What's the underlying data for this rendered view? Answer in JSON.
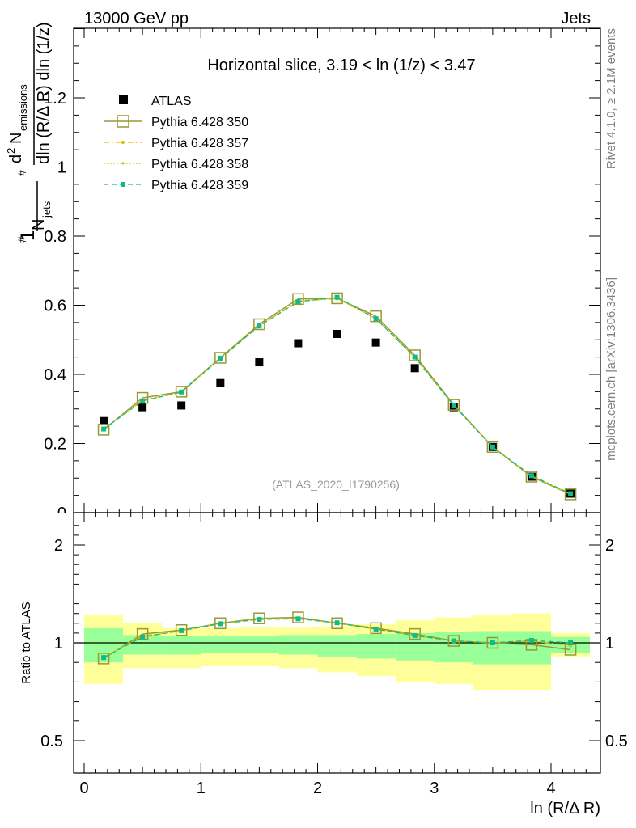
{
  "header": {
    "left": "13000 GeV pp",
    "right": "Jets"
  },
  "side_labels": {
    "rivet": "Rivet 4.1.0, ≥ 2.1M events",
    "mcplots": "mcplots.cern.ch [arXiv:1306.3436]"
  },
  "analysis_label": "(ATLAS_2020_I1790256)",
  "colors": {
    "data": "#000000",
    "p350": "#999933",
    "p357": "#e5b800",
    "p358": "#cccc00",
    "p359": "#11bb88",
    "band_outer": "#ffff99",
    "band_inner": "#99ff99"
  },
  "chart_data": [
    {
      "type": "scatter",
      "title": "Horizontal slice, 3.19 < ln (1/z) < 3.47",
      "ylabel": "(1/N_jets) d²N_emissions / dln(R/ΔR) dln(1/z)",
      "ylabel_parts": {
        "one": "1",
        "njets": "N",
        "jets_sub": "jets",
        "d2": "d",
        "two": "2",
        "nem": "N",
        "em_sub": "emissions",
        "denom": "dln (R/Δ R) dln (1/z)"
      },
      "xlim": [
        -0.1,
        4.4
      ],
      "ylim": [
        0,
        1.4
      ],
      "yticks": [
        0.2,
        0.4,
        0.6,
        0.8,
        1,
        1.2
      ],
      "ytick_labels": [
        "0.2",
        "0.4",
        "0.6",
        "0.8",
        "1",
        "1.2"
      ],
      "ytick_zero_label": "0",
      "x": [
        0.167,
        0.5,
        0.833,
        1.167,
        1.5,
        1.833,
        2.167,
        2.5,
        2.833,
        3.167,
        3.5,
        3.833,
        4.167
      ],
      "series": [
        {
          "name": "ATLAS",
          "key": "data",
          "values": [
            0.265,
            0.305,
            0.31,
            0.375,
            0.435,
            0.49,
            0.517,
            0.492,
            0.418,
            0.305,
            0.19,
            0.104,
            0.055
          ]
        },
        {
          "name": "Pythia 6.428 350",
          "key": "p350",
          "values": [
            0.24,
            0.332,
            0.35,
            0.448,
            0.545,
            0.618,
            0.62,
            0.568,
            0.455,
            0.312,
            0.19,
            0.104,
            0.053
          ]
        },
        {
          "name": "Pythia 6.428 357",
          "key": "p357",
          "values": [
            0.242,
            0.326,
            0.349,
            0.446,
            0.541,
            0.612,
            0.619,
            0.562,
            0.449,
            0.31,
            0.19,
            0.106,
            0.054
          ]
        },
        {
          "name": "Pythia 6.428 358",
          "key": "p358",
          "values": [
            0.242,
            0.324,
            0.348,
            0.446,
            0.54,
            0.611,
            0.621,
            0.561,
            0.449,
            0.31,
            0.19,
            0.106,
            0.054
          ]
        },
        {
          "name": "Pythia 6.428 359",
          "key": "p359",
          "values": [
            0.242,
            0.323,
            0.349,
            0.447,
            0.54,
            0.61,
            0.623,
            0.561,
            0.45,
            0.31,
            0.19,
            0.107,
            0.055
          ]
        }
      ]
    },
    {
      "type": "line",
      "title": "Ratio to ATLAS",
      "ylabel": "Ratio to ATLAS",
      "xlabel": "ln (R/Δ R)",
      "xlim": [
        -0.1,
        4.4
      ],
      "ylim": [
        0.4,
        2.3
      ],
      "xticks": [
        0,
        1,
        2,
        3,
        4
      ],
      "xtick_labels": [
        "0",
        "1",
        "2",
        "3",
        "4"
      ],
      "yticks": [
        0.5,
        1,
        2
      ],
      "ytick_labels": [
        "0.5",
        "1",
        "2"
      ],
      "x": [
        0.167,
        0.5,
        0.833,
        1.167,
        1.5,
        1.833,
        2.167,
        2.5,
        2.833,
        3.167,
        3.5,
        3.833,
        4.167
      ],
      "bin_edges": [
        0,
        0.333,
        0.667,
        1,
        1.333,
        1.667,
        2,
        2.333,
        2.667,
        3,
        3.333,
        3.667,
        4,
        4.333
      ],
      "band_outer": [
        [
          0.79,
          1.29
        ],
        [
          0.87,
          1.2
        ],
        [
          0.87,
          1.15
        ],
        [
          0.88,
          1.15
        ],
        [
          0.88,
          1.16
        ],
        [
          0.87,
          1.16
        ],
        [
          0.85,
          1.17
        ],
        [
          0.83,
          1.19
        ],
        [
          0.8,
          1.23
        ],
        [
          0.79,
          1.26
        ],
        [
          0.76,
          1.29
        ],
        [
          0.76,
          1.3
        ],
        [
          0.93,
          1.1
        ]
      ],
      "band_inner": [
        [
          0.9,
          1.15
        ],
        [
          0.94,
          1.08
        ],
        [
          0.94,
          1.07
        ],
        [
          0.95,
          1.07
        ],
        [
          0.95,
          1.07
        ],
        [
          0.94,
          1.08
        ],
        [
          0.93,
          1.08
        ],
        [
          0.92,
          1.09
        ],
        [
          0.91,
          1.1
        ],
        [
          0.9,
          1.11
        ],
        [
          0.89,
          1.12
        ],
        [
          0.89,
          1.12
        ],
        [
          0.95,
          1.06
        ]
      ],
      "series": [
        {
          "name": "Pythia 6.428 350",
          "key": "p350",
          "values": [
            0.92,
            1.09,
            1.13,
            1.2,
            1.25,
            1.26,
            1.2,
            1.15,
            1.09,
            1.02,
            1.0,
            0.99,
            0.965
          ]
        },
        {
          "name": "Pythia 6.428 357",
          "key": "p357",
          "values": [
            0.925,
            1.07,
            1.125,
            1.195,
            1.245,
            1.25,
            1.2,
            1.14,
            1.075,
            1.02,
            1.0,
            1.02,
            0.985
          ]
        },
        {
          "name": "Pythia 6.428 358",
          "key": "p358",
          "values": [
            0.925,
            1.065,
            1.125,
            1.195,
            1.245,
            1.25,
            1.2,
            1.14,
            1.075,
            1.02,
            1.0,
            1.02,
            0.985
          ]
        },
        {
          "name": "Pythia 6.428 359",
          "key": "p359",
          "values": [
            0.925,
            1.06,
            1.125,
            1.195,
            1.24,
            1.245,
            1.205,
            1.14,
            1.075,
            1.02,
            1.0,
            1.025,
            1.0
          ]
        }
      ]
    }
  ]
}
